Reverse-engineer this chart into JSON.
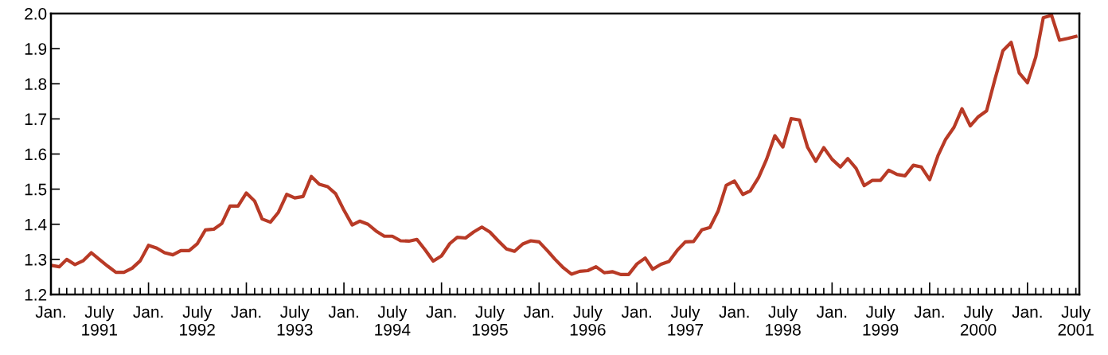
{
  "chart_data": {
    "type": "line",
    "x": [
      "1991-01",
      "1991-02",
      "1991-03",
      "1991-04",
      "1991-05",
      "1991-06",
      "1991-07",
      "1991-08",
      "1991-09",
      "1991-10",
      "1991-11",
      "1991-12",
      "1992-01",
      "1992-02",
      "1992-03",
      "1992-04",
      "1992-05",
      "1992-06",
      "1992-07",
      "1992-08",
      "1992-09",
      "1992-10",
      "1992-11",
      "1992-12",
      "1993-01",
      "1993-02",
      "1993-03",
      "1993-04",
      "1993-05",
      "1993-06",
      "1993-07",
      "1993-08",
      "1993-09",
      "1993-10",
      "1993-11",
      "1993-12",
      "1994-01",
      "1994-02",
      "1994-03",
      "1994-04",
      "1994-05",
      "1994-06",
      "1994-07",
      "1994-08",
      "1994-09",
      "1994-10",
      "1994-11",
      "1994-12",
      "1995-01",
      "1995-02",
      "1995-03",
      "1995-04",
      "1995-05",
      "1995-06",
      "1995-07",
      "1995-08",
      "1995-09",
      "1995-10",
      "1995-11",
      "1995-12",
      "1996-01",
      "1996-02",
      "1996-03",
      "1996-04",
      "1996-05",
      "1996-06",
      "1996-07",
      "1996-08",
      "1996-09",
      "1996-10",
      "1996-11",
      "1996-12",
      "1997-01",
      "1997-02",
      "1997-03",
      "1997-04",
      "1997-05",
      "1997-06",
      "1997-07",
      "1997-08",
      "1997-09",
      "1997-10",
      "1997-11",
      "1997-12",
      "1998-01",
      "1998-02",
      "1998-03",
      "1998-04",
      "1998-05",
      "1998-06",
      "1998-07",
      "1998-08",
      "1998-09",
      "1998-10",
      "1998-11",
      "1998-12",
      "1999-01",
      "1999-02",
      "1999-03",
      "1999-04",
      "1999-05",
      "1999-06",
      "1999-07",
      "1999-08",
      "1999-09",
      "1999-10",
      "1999-11",
      "1999-12",
      "2000-01",
      "2000-02",
      "2000-03",
      "2000-04",
      "2000-05",
      "2000-06",
      "2000-07",
      "2000-08",
      "2000-09",
      "2000-10",
      "2000-11",
      "2000-12",
      "2001-01",
      "2001-02",
      "2001-03",
      "2001-04",
      "2001-05",
      "2001-06",
      "2001-07"
    ],
    "series": [
      {
        "color": "#b83a26",
        "values": [
          1.283,
          1.279,
          1.3,
          1.285,
          1.296,
          1.319,
          1.3,
          1.281,
          1.263,
          1.263,
          1.275,
          1.296,
          1.34,
          1.332,
          1.319,
          1.313,
          1.325,
          1.325,
          1.344,
          1.384,
          1.386,
          1.402,
          1.452,
          1.452,
          1.489,
          1.466,
          1.415,
          1.406,
          1.434,
          1.485,
          1.475,
          1.479,
          1.536,
          1.514,
          1.507,
          1.487,
          1.44,
          1.398,
          1.409,
          1.4,
          1.381,
          1.366,
          1.366,
          1.353,
          1.352,
          1.357,
          1.327,
          1.295,
          1.31,
          1.345,
          1.363,
          1.361,
          1.378,
          1.392,
          1.378,
          1.353,
          1.33,
          1.323,
          1.344,
          1.353,
          1.35,
          1.325,
          1.3,
          1.276,
          1.258,
          1.266,
          1.268,
          1.279,
          1.262,
          1.265,
          1.257,
          1.257,
          1.287,
          1.304,
          1.272,
          1.286,
          1.294,
          1.326,
          1.35,
          1.351,
          1.384,
          1.391,
          1.438,
          1.511,
          1.523,
          1.485,
          1.495,
          1.533,
          1.585,
          1.652,
          1.62,
          1.701,
          1.697,
          1.62,
          1.579,
          1.618,
          1.585,
          1.563,
          1.587,
          1.559,
          1.51,
          1.525,
          1.525,
          1.554,
          1.542,
          1.538,
          1.568,
          1.563,
          1.527,
          1.595,
          1.642,
          1.676,
          1.729,
          1.68,
          1.706,
          1.723,
          1.812,
          1.894,
          1.918,
          1.831,
          1.803,
          1.876,
          1.988,
          1.995,
          1.924,
          1.929,
          1.935
        ]
      }
    ],
    "xlim": [
      "1991-01-01",
      "2001-07-14"
    ],
    "ylim": [
      1.2,
      2.0
    ],
    "yticks": [
      {
        "value": 1.2,
        "label": "1.2"
      },
      {
        "value": 1.3,
        "label": "1.3"
      },
      {
        "value": 1.4,
        "label": "1.4"
      },
      {
        "value": 1.5,
        "label": "1.5"
      },
      {
        "value": 1.6,
        "label": "1.6"
      },
      {
        "value": 1.7,
        "label": "1.7"
      },
      {
        "value": 1.8,
        "label": "1.8"
      },
      {
        "value": 1.9,
        "label": "1.9"
      },
      {
        "value": 2.0,
        "label": "2.0"
      }
    ],
    "xticks": [
      {
        "value": "1991-01",
        "label": "Jan."
      },
      {
        "value": "1991-07",
        "label": "July\n1991"
      },
      {
        "value": "1992-01",
        "label": "Jan."
      },
      {
        "value": "1992-07",
        "label": "July\n1992"
      },
      {
        "value": "1993-01",
        "label": "Jan."
      },
      {
        "value": "1993-07",
        "label": "July\n1993"
      },
      {
        "value": "1994-01",
        "label": "Jan."
      },
      {
        "value": "1994-07",
        "label": "July\n1994"
      },
      {
        "value": "1995-01",
        "label": "Jan."
      },
      {
        "value": "1995-07",
        "label": "July\n1995"
      },
      {
        "value": "1996-01",
        "label": "Jan."
      },
      {
        "value": "1996-07",
        "label": "July\n1996"
      },
      {
        "value": "1997-01",
        "label": "Jan."
      },
      {
        "value": "1997-07",
        "label": "July\n1997"
      },
      {
        "value": "1998-01",
        "label": "Jan."
      },
      {
        "value": "1998-07",
        "label": "July\n1998"
      },
      {
        "value": "1999-01",
        "label": "Jan."
      },
      {
        "value": "1999-07",
        "label": "July\n1999"
      },
      {
        "value": "2000-01",
        "label": "Jan."
      },
      {
        "value": "2000-07",
        "label": "July\n2000"
      },
      {
        "value": "2001-01",
        "label": "Jan."
      },
      {
        "value": "2001-07",
        "label": "July\n2001"
      }
    ],
    "grid": false,
    "legend": false,
    "marker": "none",
    "line_style": "solid"
  }
}
